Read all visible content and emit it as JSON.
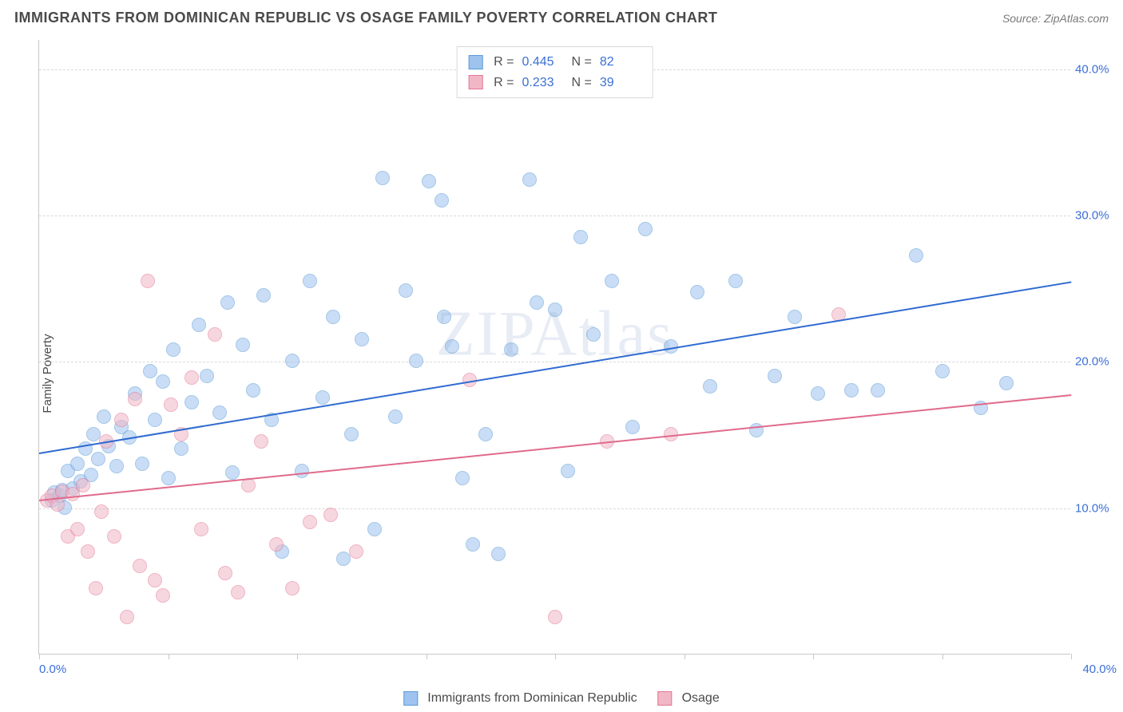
{
  "header": {
    "title": "IMMIGRANTS FROM DOMINICAN REPUBLIC VS OSAGE FAMILY POVERTY CORRELATION CHART",
    "source_prefix": "Source: ",
    "source_name": "ZipAtlas.com"
  },
  "ylabel": "Family Poverty",
  "watermark": "ZIPAtlas",
  "chart": {
    "type": "scatter",
    "xlim": [
      0,
      40
    ],
    "ylim": [
      0,
      42
    ],
    "xlim_labels": {
      "min": "0.0%",
      "max": "40.0%"
    },
    "xtick_positions": [
      0,
      5,
      10,
      15,
      20,
      25,
      30,
      35,
      40
    ],
    "ytick_positions": [
      10,
      20,
      30,
      40
    ],
    "ytick_labels": [
      "10.0%",
      "20.0%",
      "30.0%",
      "40.0%"
    ],
    "grid_color": "#d8d8d8",
    "axis_color": "#c8c8c8",
    "tick_label_color": "#3b6fd6",
    "background_color": "#ffffff",
    "marker_radius": 9,
    "marker_opacity": 0.55,
    "marker_border_width": 1.2,
    "trend_line_width": 2
  },
  "series": [
    {
      "key": "dr",
      "label": "Immigrants from Dominican Republic",
      "fill_color": "#9fc3ef",
      "border_color": "#5a9bd5",
      "line_color": "#2f6bd0",
      "R_label": "R = ",
      "R_value": "0.445",
      "N_label": "N = ",
      "N_value": "82",
      "trend": {
        "x0": 0,
        "y0": 13.8,
        "x1": 40,
        "y1": 25.5
      },
      "points": [
        [
          0.5,
          10.5
        ],
        [
          0.6,
          11.0
        ],
        [
          0.8,
          10.8
        ],
        [
          0.9,
          11.2
        ],
        [
          1.0,
          10.0
        ],
        [
          1.1,
          12.5
        ],
        [
          1.3,
          11.3
        ],
        [
          1.5,
          13.0
        ],
        [
          1.6,
          11.8
        ],
        [
          1.8,
          14.0
        ],
        [
          2.0,
          12.2
        ],
        [
          2.1,
          15.0
        ],
        [
          2.3,
          13.3
        ],
        [
          2.5,
          16.2
        ],
        [
          2.7,
          14.2
        ],
        [
          3.0,
          12.8
        ],
        [
          3.2,
          15.5
        ],
        [
          3.5,
          14.8
        ],
        [
          3.7,
          17.8
        ],
        [
          4.0,
          13.0
        ],
        [
          4.3,
          19.3
        ],
        [
          4.5,
          16.0
        ],
        [
          4.8,
          18.6
        ],
        [
          5.0,
          12.0
        ],
        [
          5.2,
          20.8
        ],
        [
          5.5,
          14.0
        ],
        [
          5.9,
          17.2
        ],
        [
          6.2,
          22.5
        ],
        [
          6.5,
          19.0
        ],
        [
          7.0,
          16.5
        ],
        [
          7.3,
          24.0
        ],
        [
          7.5,
          12.4
        ],
        [
          7.9,
          21.1
        ],
        [
          8.3,
          18.0
        ],
        [
          8.7,
          24.5
        ],
        [
          9.0,
          16.0
        ],
        [
          9.4,
          7.0
        ],
        [
          9.8,
          20.0
        ],
        [
          10.2,
          12.5
        ],
        [
          10.5,
          25.5
        ],
        [
          11.0,
          17.5
        ],
        [
          11.4,
          23.0
        ],
        [
          11.8,
          6.5
        ],
        [
          12.1,
          15.0
        ],
        [
          12.5,
          21.5
        ],
        [
          13.0,
          8.5
        ],
        [
          13.3,
          32.5
        ],
        [
          13.8,
          16.2
        ],
        [
          14.2,
          24.8
        ],
        [
          14.6,
          20.0
        ],
        [
          15.1,
          32.3
        ],
        [
          15.6,
          31.0
        ],
        [
          15.7,
          23.0
        ],
        [
          16.0,
          21.0
        ],
        [
          16.4,
          12.0
        ],
        [
          16.8,
          7.5
        ],
        [
          17.3,
          15.0
        ],
        [
          17.8,
          6.8
        ],
        [
          18.3,
          20.8
        ],
        [
          19.0,
          32.4
        ],
        [
          19.3,
          24.0
        ],
        [
          20.0,
          23.5
        ],
        [
          20.5,
          12.5
        ],
        [
          21.0,
          28.5
        ],
        [
          21.5,
          21.8
        ],
        [
          22.2,
          25.5
        ],
        [
          23.0,
          15.5
        ],
        [
          23.5,
          29.0
        ],
        [
          24.5,
          21.0
        ],
        [
          25.5,
          24.7
        ],
        [
          26.0,
          18.3
        ],
        [
          27.0,
          25.5
        ],
        [
          27.8,
          15.3
        ],
        [
          28.5,
          19.0
        ],
        [
          29.3,
          23.0
        ],
        [
          30.2,
          17.8
        ],
        [
          31.5,
          18.0
        ],
        [
          32.5,
          18.0
        ],
        [
          34.0,
          27.2
        ],
        [
          35.0,
          19.3
        ],
        [
          36.5,
          16.8
        ],
        [
          37.5,
          18.5
        ]
      ]
    },
    {
      "key": "osage",
      "label": "Osage",
      "fill_color": "#f2b7c6",
      "border_color": "#e37694",
      "line_color": "#e06a8c",
      "R_label": "R = ",
      "R_value": "0.233",
      "N_label": "N = ",
      "N_value": "39",
      "trend": {
        "x0": 0,
        "y0": 10.6,
        "x1": 40,
        "y1": 17.8
      },
      "points": [
        [
          0.3,
          10.5
        ],
        [
          0.5,
          10.8
        ],
        [
          0.7,
          10.2
        ],
        [
          0.9,
          11.1
        ],
        [
          1.1,
          8.0
        ],
        [
          1.3,
          10.9
        ],
        [
          1.5,
          8.5
        ],
        [
          1.7,
          11.5
        ],
        [
          1.9,
          7.0
        ],
        [
          2.2,
          4.5
        ],
        [
          2.4,
          9.7
        ],
        [
          2.6,
          14.5
        ],
        [
          2.9,
          8.0
        ],
        [
          3.2,
          16.0
        ],
        [
          3.4,
          2.5
        ],
        [
          3.7,
          17.4
        ],
        [
          3.9,
          6.0
        ],
        [
          4.2,
          25.5
        ],
        [
          4.5,
          5.0
        ],
        [
          4.8,
          4.0
        ],
        [
          5.1,
          17.0
        ],
        [
          5.5,
          15.0
        ],
        [
          5.9,
          18.9
        ],
        [
          6.3,
          8.5
        ],
        [
          6.8,
          21.8
        ],
        [
          7.2,
          5.5
        ],
        [
          7.7,
          4.2
        ],
        [
          8.1,
          11.5
        ],
        [
          8.6,
          14.5
        ],
        [
          9.2,
          7.5
        ],
        [
          9.8,
          4.5
        ],
        [
          10.5,
          9.0
        ],
        [
          11.3,
          9.5
        ],
        [
          12.3,
          7.0
        ],
        [
          16.7,
          18.7
        ],
        [
          20.0,
          2.5
        ],
        [
          22.0,
          14.5
        ],
        [
          24.5,
          15.0
        ],
        [
          31.0,
          23.2
        ]
      ]
    }
  ],
  "legend_bottom_order": [
    "dr",
    "osage"
  ]
}
